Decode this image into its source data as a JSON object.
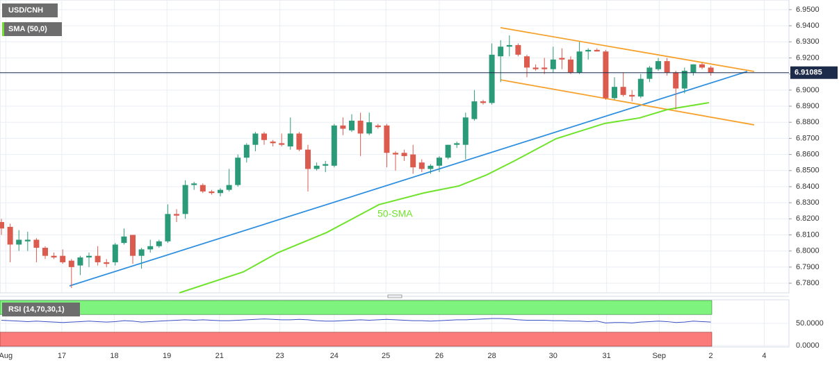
{
  "chart_data": {
    "type": "candlestick",
    "title": "USD/CNH",
    "indicator_label": "SMA (50,0)",
    "annotation": "50-SMA",
    "colors": {
      "up": "#2b9a78",
      "down": "#db5b4e",
      "trend": "#2e8fe0",
      "channel": "#f7a12d",
      "sma": "#6fe32a",
      "price": "#1d2b4a"
    },
    "xlim": [
      -0.16,
      89.92
    ],
    "ylim": [
      6.774,
      6.956
    ],
    "xticks": [
      {
        "value": 0.5,
        "label": "Aug"
      },
      {
        "value": 6.9,
        "label": "17"
      },
      {
        "value": 12.9,
        "label": "18"
      },
      {
        "value": 18.9,
        "label": "19"
      },
      {
        "value": 24.9,
        "label": "21"
      },
      {
        "value": 31.8,
        "label": "23"
      },
      {
        "value": 38,
        "label": "24"
      },
      {
        "value": 43.9,
        "label": "25"
      },
      {
        "value": 50,
        "label": "26"
      },
      {
        "value": 56,
        "label": "28"
      },
      {
        "value": 63,
        "label": "30"
      },
      {
        "value": 69.1,
        "label": "31"
      },
      {
        "value": 75.1,
        "label": "Sep"
      },
      {
        "value": 81,
        "label": "2"
      },
      {
        "value": 87.1,
        "label": "4"
      }
    ],
    "yticks": [
      {
        "value": 6.78,
        "label": "6.7800"
      },
      {
        "value": 6.79,
        "label": "6.7900"
      },
      {
        "value": 6.8,
        "label": "6.8000"
      },
      {
        "value": 6.81,
        "label": "6.8100"
      },
      {
        "value": 6.82,
        "label": "6.8200"
      },
      {
        "value": 6.83,
        "label": "6.8300"
      },
      {
        "value": 6.84,
        "label": "6.8400"
      },
      {
        "value": 6.85,
        "label": "6.8500"
      },
      {
        "value": 6.86,
        "label": "6.8600"
      },
      {
        "value": 6.87,
        "label": "6.8700"
      },
      {
        "value": 6.88,
        "label": "6.8800"
      },
      {
        "value": 6.89,
        "label": "6.8900"
      },
      {
        "value": 6.9,
        "label": "6.9000"
      },
      {
        "value": 6.91,
        "label": "6.9100"
      },
      {
        "value": 6.92,
        "label": "6.9200"
      },
      {
        "value": 6.93,
        "label": "6.9300"
      },
      {
        "value": 6.94,
        "label": "6.9400"
      },
      {
        "value": 6.95,
        "label": "6.9500"
      }
    ],
    "current_price": 6.91085,
    "current_price_label": "6.91085",
    "candles": [
      [
        6.818,
        6.82,
        6.81,
        6.814
      ],
      [
        6.815,
        6.817,
        6.793,
        6.804
      ],
      [
        6.804,
        6.813,
        6.8,
        6.807
      ],
      [
        6.806,
        6.812,
        6.8,
        6.807
      ],
      [
        6.807,
        6.808,
        6.793,
        6.802
      ],
      [
        6.802,
        6.803,
        6.795,
        6.797
      ],
      [
        6.797,
        6.799,
        6.795,
        6.796
      ],
      [
        6.797,
        6.801,
        6.792,
        6.793
      ],
      [
        6.794,
        6.795,
        6.777,
        6.79
      ],
      [
        6.791,
        6.797,
        6.785,
        6.796
      ],
      [
        6.796,
        6.799,
        6.79,
        6.797
      ],
      [
        6.797,
        6.803,
        6.791,
        6.793
      ],
      [
        6.793,
        6.795,
        6.79,
        6.792
      ],
      [
        6.793,
        6.805,
        6.791,
        6.804
      ],
      [
        6.805,
        6.814,
        6.804,
        6.809
      ],
      [
        6.81,
        6.81,
        6.792,
        6.797
      ],
      [
        6.797,
        6.802,
        6.789,
        6.801
      ],
      [
        6.801,
        6.807,
        6.799,
        6.803
      ],
      [
        6.803,
        6.807,
        6.802,
        6.806
      ],
      [
        6.806,
        6.829,
        6.805,
        6.823
      ],
      [
        6.823,
        6.826,
        6.818,
        6.822
      ],
      [
        6.823,
        6.844,
        6.82,
        6.841
      ],
      [
        6.841,
        6.843,
        6.838,
        6.842
      ],
      [
        6.841,
        6.842,
        6.836,
        6.837
      ],
      [
        6.837,
        6.838,
        6.835,
        6.836
      ],
      [
        6.836,
        6.839,
        6.834,
        6.838
      ],
      [
        6.838,
        6.851,
        6.837,
        6.841
      ],
      [
        6.841,
        6.86,
        6.84,
        6.858
      ],
      [
        6.858,
        6.867,
        6.855,
        6.866
      ],
      [
        6.866,
        6.874,
        6.862,
        6.873
      ],
      [
        6.873,
        6.874,
        6.866,
        6.869
      ],
      [
        6.868,
        6.869,
        6.865,
        6.867
      ],
      [
        6.867,
        6.873,
        6.865,
        6.866
      ],
      [
        6.865,
        6.883,
        6.863,
        6.873
      ],
      [
        6.873,
        6.874,
        6.862,
        6.863
      ],
      [
        6.863,
        6.866,
        6.837,
        6.851
      ],
      [
        6.851,
        6.855,
        6.85,
        6.853
      ],
      [
        6.853,
        6.856,
        6.849,
        6.854
      ],
      [
        6.853,
        6.879,
        6.852,
        6.878
      ],
      [
        6.878,
        6.883,
        6.872,
        6.876
      ],
      [
        6.875,
        6.885,
        6.874,
        6.881
      ],
      [
        6.881,
        6.886,
        6.859,
        6.873
      ],
      [
        6.873,
        6.886,
        6.872,
        6.88
      ],
      [
        6.878,
        6.879,
        6.876,
        6.877
      ],
      [
        6.878,
        6.879,
        6.852,
        6.861
      ],
      [
        6.861,
        6.862,
        6.85,
        6.86
      ],
      [
        6.861,
        6.863,
        6.856,
        6.859
      ],
      [
        6.86,
        6.866,
        6.848,
        6.852
      ],
      [
        6.855,
        6.857,
        6.849,
        6.851
      ],
      [
        6.851,
        6.854,
        6.848,
        6.853
      ],
      [
        6.853,
        6.859,
        6.849,
        6.858
      ],
      [
        6.858,
        6.866,
        6.857,
        6.866
      ],
      [
        6.866,
        6.868,
        6.864,
        6.867
      ],
      [
        6.866,
        6.886,
        6.857,
        6.883
      ],
      [
        6.882,
        6.9,
        6.881,
        6.893
      ],
      [
        6.893,
        6.894,
        6.891,
        6.892
      ],
      [
        6.892,
        6.929,
        6.891,
        6.922
      ],
      [
        6.921,
        6.931,
        6.905,
        6.927
      ],
      [
        6.927,
        6.934,
        6.921,
        6.928
      ],
      [
        6.928,
        6.929,
        6.921,
        6.922
      ],
      [
        6.921,
        6.922,
        6.908,
        6.914
      ],
      [
        6.914,
        6.916,
        6.912,
        6.913
      ],
      [
        6.914,
        6.92,
        6.91,
        6.913
      ],
      [
        6.913,
        6.927,
        6.911,
        6.919
      ],
      [
        6.92,
        6.926,
        6.913,
        6.919
      ],
      [
        6.919,
        6.921,
        6.91,
        6.911
      ],
      [
        6.911,
        6.93,
        6.91,
        6.924
      ],
      [
        6.924,
        6.926,
        6.919,
        6.925
      ],
      [
        6.925,
        6.926,
        6.924,
        6.924
      ],
      [
        6.924,
        6.925,
        6.894,
        6.895
      ],
      [
        6.895,
        6.908,
        6.894,
        6.902
      ],
      [
        6.902,
        6.911,
        6.896,
        6.897
      ],
      [
        6.897,
        6.9,
        6.893,
        6.896
      ],
      [
        6.896,
        6.91,
        6.895,
        6.907
      ],
      [
        6.907,
        6.915,
        6.905,
        6.914
      ],
      [
        6.913,
        6.92,
        6.912,
        6.918
      ],
      [
        6.918,
        6.92,
        6.909,
        6.911
      ],
      [
        6.911,
        6.912,
        6.888,
        6.901
      ],
      [
        6.901,
        6.914,
        6.898,
        6.912
      ],
      [
        6.911,
        6.916,
        6.909,
        6.916
      ],
      [
        6.916,
        6.917,
        6.913,
        6.914
      ],
      [
        6.914,
        6.915,
        6.909,
        6.911
      ]
    ],
    "lines": [
      {
        "name": "trend",
        "x": [
          7.78,
          85.16
        ],
        "values": [
          6.7783,
          6.9116
        ]
      },
      {
        "name": "channel",
        "x": [
          56.98,
          85.95
        ],
        "values": [
          6.9388,
          6.9116
        ]
      },
      {
        "name": "channel",
        "x": [
          56.98,
          85.95
        ],
        "values": [
          6.9064,
          6.8784
        ]
      },
      {
        "name": "sma",
        "x": [
          20.32,
          27.62,
          31.59,
          37.14,
          43.1,
          48.25,
          52.22,
          55.4,
          58.57,
          63.33,
          68.89,
          72.86,
          76.03,
          80.79
        ],
        "values": [
          6.774,
          6.787,
          6.799,
          6.8115,
          6.8288,
          6.8361,
          6.8404,
          6.8473,
          6.856,
          6.8698,
          6.8793,
          6.8827,
          6.8879,
          6.8922
        ]
      }
    ],
    "rsi": {
      "label": "RSI (14,70,30,1)",
      "ylim": [
        0,
        100
      ],
      "overbought": 70,
      "oversold": 30,
      "yticks": [
        {
          "value": 0,
          "label": "0.0000"
        },
        {
          "value": 50,
          "label": "50.0000"
        }
      ],
      "color": "#3a4fc2",
      "values": [
        57,
        56,
        55,
        54,
        55,
        54,
        53,
        52,
        53,
        54,
        55,
        54,
        53,
        54,
        56,
        55,
        53,
        54,
        55,
        56,
        57,
        58,
        57,
        58,
        57,
        56,
        56,
        57,
        58,
        59,
        60,
        59,
        58,
        58,
        59,
        58,
        56,
        55,
        55,
        56,
        57,
        58,
        57,
        58,
        59,
        58,
        57,
        56,
        56,
        55,
        56,
        57,
        58,
        58,
        59,
        60,
        61,
        61,
        60,
        58,
        57,
        57,
        57,
        56,
        56,
        55,
        55,
        54,
        55,
        51,
        52,
        52,
        51,
        53,
        54,
        55,
        54,
        52,
        53,
        55,
        54,
        53
      ]
    }
  }
}
